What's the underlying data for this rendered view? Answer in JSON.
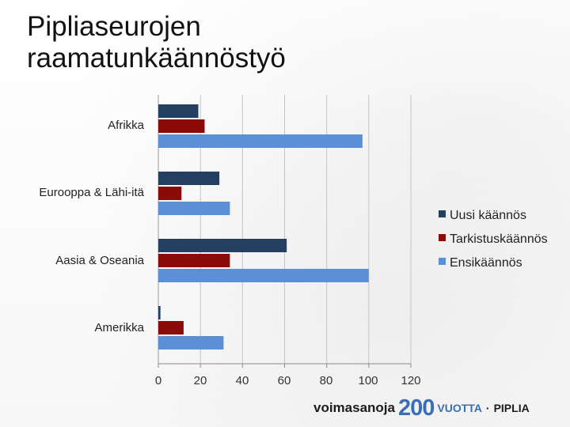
{
  "title_lines": [
    "Pipliaseurojen",
    "raamatunkäännöstyö"
  ],
  "chart_data": {
    "type": "bar",
    "orientation": "horizontal",
    "categories": [
      "Afrikka",
      "Eurooppa & Lähi-itä",
      "Aasia & Oseania",
      "Amerikka"
    ],
    "series": [
      {
        "name": "Uusi käännös",
        "color": "#243f60",
        "values": [
          19,
          29,
          61,
          1
        ]
      },
      {
        "name": "Tarkistuskäännös",
        "color": "#8b0a0a",
        "values": [
          22,
          11,
          34,
          12
        ]
      },
      {
        "name": "Ensikäännös",
        "color": "#5b8fd6",
        "values": [
          97,
          34,
          100,
          31
        ]
      }
    ],
    "xlim": [
      0,
      120
    ],
    "xticks": [
      "0",
      "20",
      "40",
      "60",
      "80",
      "100",
      "120"
    ],
    "grid": true,
    "legend": "right",
    "xlabel": "",
    "ylabel": ""
  },
  "footer": {
    "word": "voimasanoja",
    "number": "200",
    "sub": "VUOTTA",
    "separator": "·",
    "brand": "PIPLIA"
  }
}
